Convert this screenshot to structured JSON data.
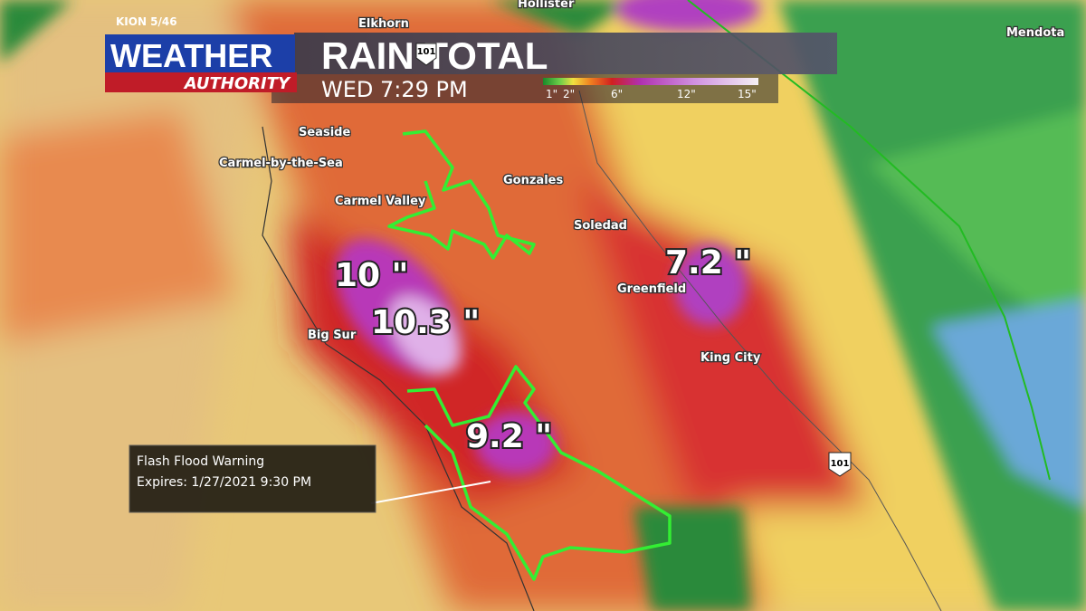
{
  "header": {
    "station": "KION 5/46",
    "brand": "WEATHER",
    "brand_sub": "AUTHORITY",
    "title": "RAIN TOTAL",
    "time": "WED 7:29 PM"
  },
  "legend": {
    "labels": [
      "1\"",
      "2\"",
      "6\"",
      "12\"",
      "15\""
    ]
  },
  "places": [
    "Hollister",
    "Elkhorn",
    "Mendota",
    "Seaside",
    "Carmel-by-the-Sea",
    "Carmel Valley",
    "Gonzales",
    "Soledad",
    "Greenfield",
    "Big Sur",
    "King City"
  ],
  "road_signs": [
    "101",
    "101"
  ],
  "rain_totals": [
    "10 \"",
    "10.3 \"",
    "9.2 \"",
    "7.2 \""
  ],
  "warning": {
    "title": "Flash Flood Warning",
    "expires": "Expires: 1/27/2021 9:30 PM"
  }
}
